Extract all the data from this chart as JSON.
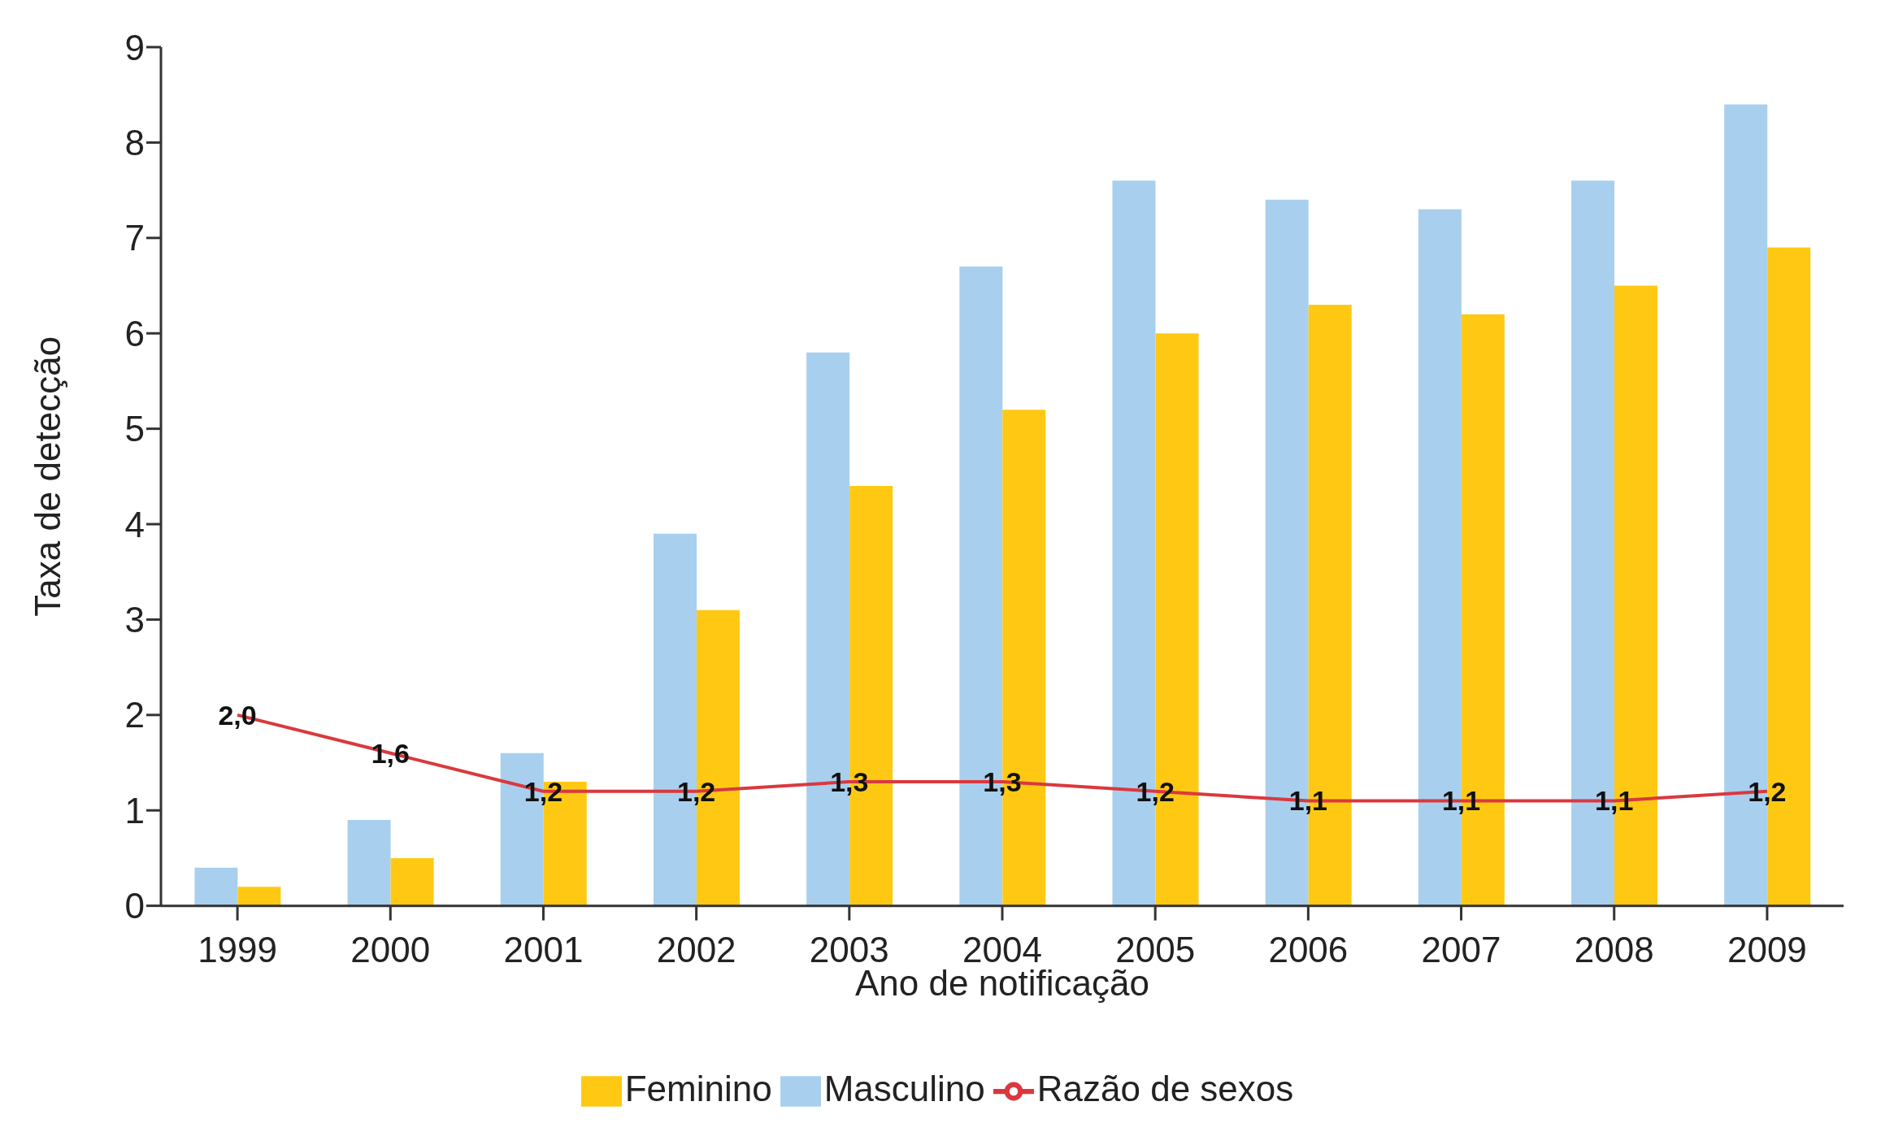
{
  "chart_data": {
    "type": "bar",
    "xlabel": "Ano de notificação",
    "ylabel": "Taxa de detecção",
    "categories": [
      "1999",
      "2000",
      "2001",
      "2002",
      "2003",
      "2004",
      "2005",
      "2006",
      "2007",
      "2008",
      "2009"
    ],
    "series": [
      {
        "name": "Masculino",
        "color": "#a9cfee",
        "values": [
          0.4,
          0.9,
          1.6,
          3.9,
          5.8,
          6.7,
          7.6,
          7.4,
          7.3,
          7.6,
          8.4
        ]
      },
      {
        "name": "Feminino",
        "color": "#ffc913",
        "values": [
          0.2,
          0.5,
          1.3,
          3.1,
          4.4,
          5.2,
          6.0,
          6.3,
          6.2,
          6.5,
          6.9
        ]
      },
      {
        "name": "Razão de sexos",
        "type": "line",
        "color": "#d9393e",
        "values": [
          2.0,
          1.6,
          1.2,
          1.2,
          1.3,
          1.3,
          1.2,
          1.1,
          1.1,
          1.1,
          1.2
        ],
        "value_labels": [
          "2,0",
          "1,6",
          "1,2",
          "1,2",
          "1,3",
          "1,3",
          "1,2",
          "1,1",
          "1,1",
          "1,1",
          "1,2"
        ]
      }
    ],
    "ylim": [
      0,
      9
    ],
    "yticks": [
      0,
      1,
      2,
      3,
      4,
      5,
      6,
      7,
      8,
      9
    ],
    "grid": false,
    "legend": "bottom",
    "marker": "none",
    "line_style": "solid"
  }
}
